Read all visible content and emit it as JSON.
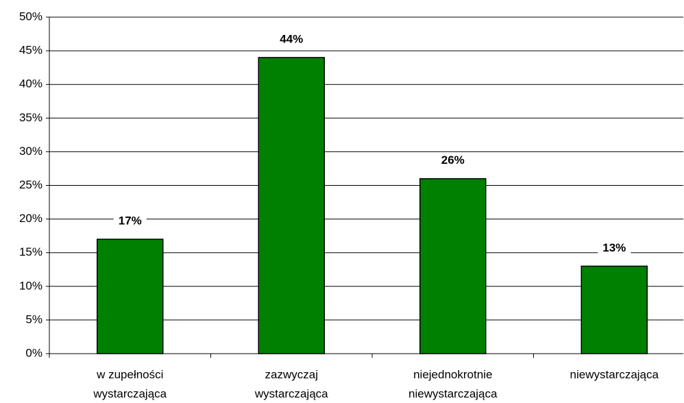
{
  "chart_data": {
    "type": "bar",
    "categories": [
      "w zupełności\nwystarczająca",
      "zazwyczaj\nwystarczająca",
      "niejednokrotnie\nniewystarczająca",
      "niewystarczająca"
    ],
    "values": [
      17,
      44,
      26,
      13
    ],
    "value_labels": [
      "17%",
      "44%",
      "26%",
      "13%"
    ],
    "color": "#008000",
    "ylim": [
      0,
      50
    ],
    "yticks": [
      {
        "value": 0,
        "label": "0%"
      },
      {
        "value": 5,
        "label": "5%"
      },
      {
        "value": 10,
        "label": "10%"
      },
      {
        "value": 15,
        "label": "15%"
      },
      {
        "value": 20,
        "label": "20%"
      },
      {
        "value": 25,
        "label": "25%"
      },
      {
        "value": 30,
        "label": "30%"
      },
      {
        "value": 35,
        "label": "35%"
      },
      {
        "value": 40,
        "label": "40%"
      },
      {
        "value": 45,
        "label": "45%"
      },
      {
        "value": 50,
        "label": "50%"
      }
    ],
    "grid": true
  }
}
